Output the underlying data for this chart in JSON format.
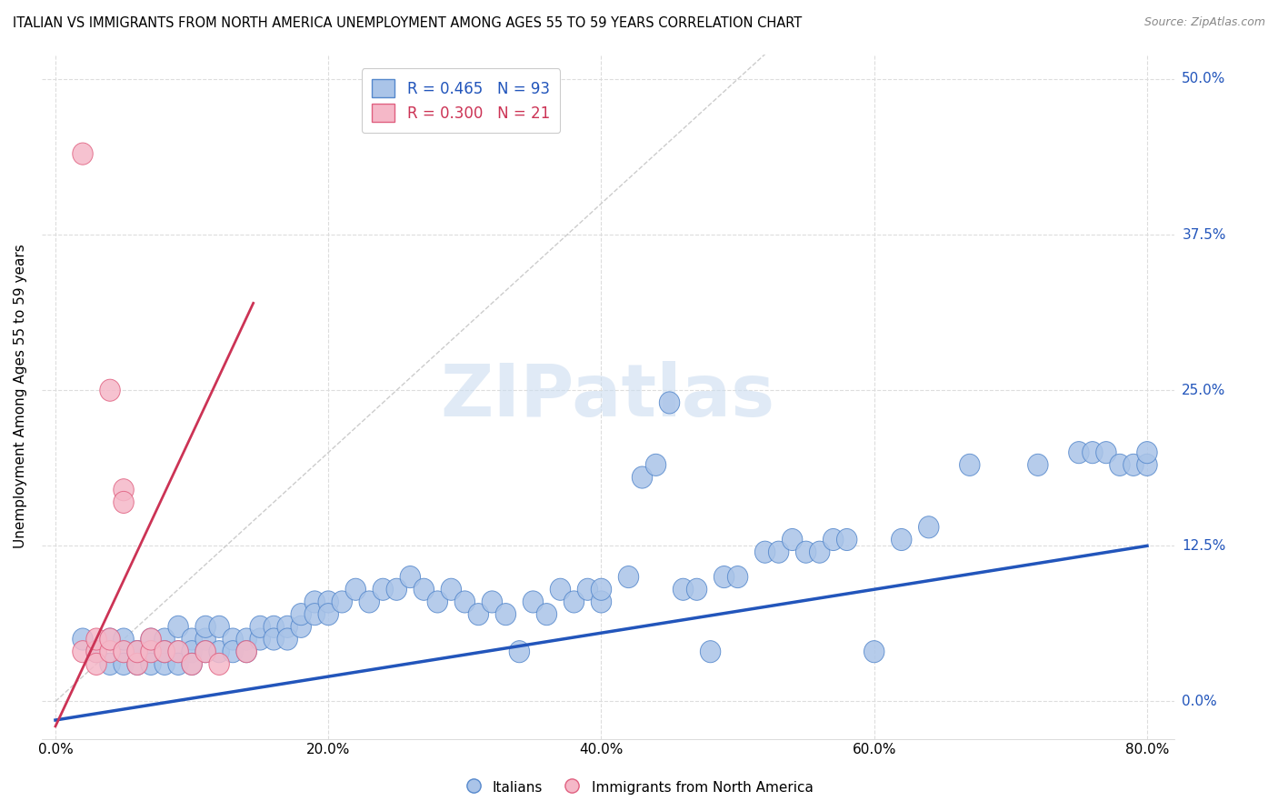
{
  "title": "ITALIAN VS IMMIGRANTS FROM NORTH AMERICA UNEMPLOYMENT AMONG AGES 55 TO 59 YEARS CORRELATION CHART",
  "source": "Source: ZipAtlas.com",
  "ylabel": "Unemployment Among Ages 55 to 59 years",
  "xlabel_ticks": [
    "0.0%",
    "20.0%",
    "40.0%",
    "60.0%",
    "80.0%"
  ],
  "ylabel_ticks": [
    "0.0%",
    "12.5%",
    "25.0%",
    "37.5%",
    "50.0%"
  ],
  "xlim": [
    -0.01,
    0.82
  ],
  "ylim": [
    -0.03,
    0.52
  ],
  "blue_R": 0.465,
  "blue_N": 93,
  "pink_R": 0.3,
  "pink_N": 21,
  "blue_color": "#aac4e8",
  "pink_color": "#f5b8c8",
  "blue_edge_color": "#5588cc",
  "pink_edge_color": "#e06080",
  "blue_line_color": "#2255bb",
  "pink_line_color": "#cc3355",
  "diagonal_color": "#cccccc",
  "watermark_color": "#ccddf0",
  "watermark": "ZIPatlas",
  "legend_label_blue": "Italians",
  "legend_label_pink": "Immigrants from North America",
  "blue_scatter_x": [
    0.02,
    0.03,
    0.04,
    0.04,
    0.05,
    0.05,
    0.05,
    0.06,
    0.06,
    0.06,
    0.07,
    0.07,
    0.07,
    0.08,
    0.08,
    0.08,
    0.08,
    0.09,
    0.09,
    0.09,
    0.1,
    0.1,
    0.1,
    0.11,
    0.11,
    0.11,
    0.12,
    0.12,
    0.13,
    0.13,
    0.14,
    0.14,
    0.15,
    0.15,
    0.16,
    0.16,
    0.17,
    0.17,
    0.18,
    0.18,
    0.19,
    0.19,
    0.2,
    0.2,
    0.21,
    0.22,
    0.23,
    0.24,
    0.25,
    0.26,
    0.27,
    0.28,
    0.29,
    0.3,
    0.31,
    0.32,
    0.33,
    0.34,
    0.35,
    0.36,
    0.37,
    0.38,
    0.39,
    0.4,
    0.4,
    0.42,
    0.43,
    0.44,
    0.45,
    0.46,
    0.47,
    0.48,
    0.49,
    0.5,
    0.52,
    0.53,
    0.54,
    0.55,
    0.56,
    0.57,
    0.58,
    0.6,
    0.62,
    0.64,
    0.67,
    0.72,
    0.75,
    0.76,
    0.77,
    0.78,
    0.79,
    0.8,
    0.8
  ],
  "blue_scatter_y": [
    0.05,
    0.04,
    0.05,
    0.03,
    0.04,
    0.03,
    0.05,
    0.04,
    0.03,
    0.04,
    0.05,
    0.04,
    0.03,
    0.04,
    0.03,
    0.05,
    0.04,
    0.06,
    0.04,
    0.03,
    0.05,
    0.04,
    0.03,
    0.05,
    0.06,
    0.04,
    0.06,
    0.04,
    0.05,
    0.04,
    0.05,
    0.04,
    0.05,
    0.06,
    0.06,
    0.05,
    0.06,
    0.05,
    0.06,
    0.07,
    0.08,
    0.07,
    0.08,
    0.07,
    0.08,
    0.09,
    0.08,
    0.09,
    0.09,
    0.1,
    0.09,
    0.08,
    0.09,
    0.08,
    0.07,
    0.08,
    0.07,
    0.04,
    0.08,
    0.07,
    0.09,
    0.08,
    0.09,
    0.08,
    0.09,
    0.1,
    0.18,
    0.19,
    0.24,
    0.09,
    0.09,
    0.04,
    0.1,
    0.1,
    0.12,
    0.12,
    0.13,
    0.12,
    0.12,
    0.13,
    0.13,
    0.04,
    0.13,
    0.14,
    0.19,
    0.19,
    0.2,
    0.2,
    0.2,
    0.19,
    0.19,
    0.19,
    0.2
  ],
  "pink_scatter_x": [
    0.02,
    0.02,
    0.03,
    0.03,
    0.03,
    0.04,
    0.04,
    0.04,
    0.05,
    0.05,
    0.05,
    0.06,
    0.06,
    0.07,
    0.07,
    0.08,
    0.09,
    0.1,
    0.11,
    0.12,
    0.14
  ],
  "pink_scatter_y": [
    0.44,
    0.04,
    0.04,
    0.03,
    0.05,
    0.25,
    0.04,
    0.05,
    0.17,
    0.16,
    0.04,
    0.03,
    0.04,
    0.04,
    0.05,
    0.04,
    0.04,
    0.03,
    0.04,
    0.03,
    0.04
  ],
  "blue_line_x0": 0.0,
  "blue_line_y0": -0.015,
  "blue_line_x1": 0.8,
  "blue_line_y1": 0.125,
  "pink_line_x0": 0.0,
  "pink_line_y0": -0.02,
  "pink_line_x1": 0.145,
  "pink_line_y1": 0.32
}
